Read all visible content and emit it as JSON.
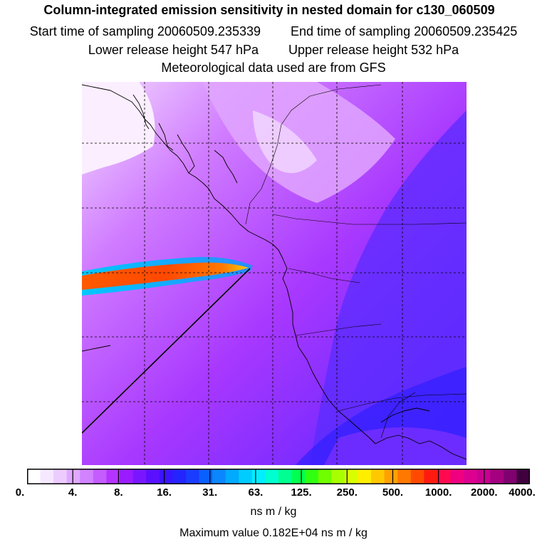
{
  "title": "Column-integrated emission sensitivity in nested domain for c130_060509",
  "start_label": "Start time of sampling 20060509.235339",
  "end_label": "End time of sampling 20060509.235425",
  "lower_label": "Lower release height  547 hPa",
  "upper_label": "Upper release height  532 hPa",
  "met_label": "Meteorological data used are from GFS",
  "colorbar": {
    "ticks": [
      "0.",
      "4.",
      "8.",
      "16.",
      "31.",
      "63.",
      "125.",
      "250.",
      "500.",
      "1000.",
      "2000.",
      "4000."
    ],
    "colors": [
      "#ffffff",
      "#f6e8ff",
      "#eccbff",
      "#dfa8ff",
      "#d282ff",
      "#c45cff",
      "#b434ff",
      "#9a1bff",
      "#7a16ff",
      "#5a10ff",
      "#3a14ff",
      "#2424ff",
      "#1a3cff",
      "#0a60ff",
      "#0a86ff",
      "#00aaff",
      "#00ccff",
      "#00eeff",
      "#00ffd0",
      "#00ff90",
      "#00ff50",
      "#30ff10",
      "#70ff00",
      "#a8ff00",
      "#d8ff00",
      "#ffee00",
      "#ffc800",
      "#ffa000",
      "#ff7800",
      "#ff4a00",
      "#ff1a10",
      "#ff0a50",
      "#f00080",
      "#dd0090",
      "#c80090",
      "#a40080",
      "#800070",
      "#400040"
    ]
  },
  "units": "ns m / kg",
  "max_label": "Maximum value  0.182E+04 ns m / kg"
}
